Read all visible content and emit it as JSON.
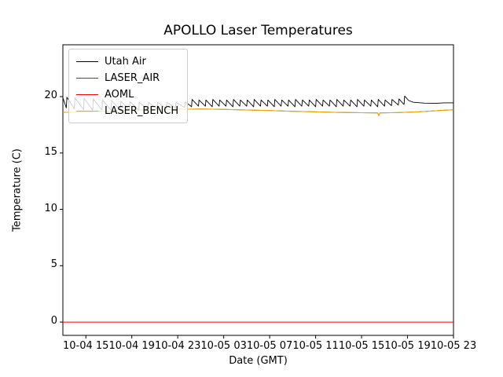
{
  "chart_data": {
    "type": "line",
    "title": "APOLLO Laser Temperatures",
    "xlabel": "Date (GMT)",
    "ylabel": "Temperature (C)",
    "xlim": [
      0,
      34
    ],
    "ylim": [
      -1.18,
      24.6
    ],
    "grid": false,
    "legend_position": "upper left",
    "xticks": {
      "positions": [
        2,
        6,
        10,
        14,
        18,
        22,
        26,
        30,
        34
      ],
      "labels": [
        "10-04 15",
        "10-04 19",
        "10-04 23",
        "10-05 03",
        "10-05 07",
        "10-05 11",
        "10-05 15",
        "10-05 19",
        "10-05 23"
      ]
    },
    "yticks": {
      "positions": [
        0,
        5,
        10,
        15,
        20
      ],
      "labels": [
        "0",
        "5",
        "10",
        "15",
        "20"
      ]
    },
    "series": [
      {
        "name": "Utah Air",
        "color": "#000000",
        "width": 0.9,
        "points": [
          [
            0,
            19.9
          ],
          [
            0.3,
            19.0
          ],
          [
            0.35,
            19.95
          ],
          [
            1.0,
            18.9
          ],
          [
            1.05,
            19.9
          ],
          [
            1.8,
            18.85
          ],
          [
            1.85,
            19.85
          ],
          [
            2.6,
            18.8
          ],
          [
            2.65,
            19.8
          ],
          [
            3.4,
            18.8
          ],
          [
            3.45,
            19.7
          ],
          [
            4.2,
            18.8
          ],
          [
            4.25,
            19.65
          ],
          [
            5.0,
            18.8
          ],
          [
            5.05,
            19.6
          ],
          [
            5.8,
            18.8
          ],
          [
            5.85,
            19.55
          ],
          [
            6.6,
            18.8
          ],
          [
            6.65,
            19.5
          ],
          [
            7.4,
            18.85
          ],
          [
            7.45,
            19.5
          ],
          [
            8.2,
            18.9
          ],
          [
            8.25,
            19.5
          ],
          [
            9.0,
            18.95
          ],
          [
            9.05,
            19.5
          ],
          [
            9.8,
            19.0
          ],
          [
            9.85,
            19.5
          ],
          [
            10.6,
            19.05
          ],
          [
            10.65,
            19.55
          ],
          [
            11.2,
            19.1
          ],
          [
            11.25,
            19.75
          ],
          [
            11.8,
            19.15
          ],
          [
            11.85,
            19.7
          ],
          [
            12.4,
            19.15
          ],
          [
            12.45,
            19.7
          ],
          [
            13.0,
            19.1
          ],
          [
            13.05,
            19.75
          ],
          [
            13.6,
            19.15
          ],
          [
            13.65,
            19.7
          ],
          [
            14.2,
            19.15
          ],
          [
            14.25,
            19.7
          ],
          [
            14.8,
            19.1
          ],
          [
            14.85,
            19.75
          ],
          [
            15.4,
            19.15
          ],
          [
            15.45,
            19.7
          ],
          [
            16.0,
            19.15
          ],
          [
            16.05,
            19.7
          ],
          [
            16.6,
            19.1
          ],
          [
            16.65,
            19.75
          ],
          [
            17.2,
            19.15
          ],
          [
            17.25,
            19.7
          ],
          [
            17.8,
            19.15
          ],
          [
            17.85,
            19.7
          ],
          [
            18.4,
            19.1
          ],
          [
            18.45,
            19.75
          ],
          [
            19.0,
            19.15
          ],
          [
            19.05,
            19.7
          ],
          [
            19.6,
            19.15
          ],
          [
            19.65,
            19.7
          ],
          [
            20.2,
            19.1
          ],
          [
            20.25,
            19.75
          ],
          [
            20.8,
            19.15
          ],
          [
            20.85,
            19.7
          ],
          [
            21.4,
            19.15
          ],
          [
            21.45,
            19.7
          ],
          [
            22.0,
            19.1
          ],
          [
            22.05,
            19.75
          ],
          [
            22.6,
            19.15
          ],
          [
            22.65,
            19.7
          ],
          [
            23.2,
            19.15
          ],
          [
            23.25,
            19.7
          ],
          [
            23.8,
            19.1
          ],
          [
            23.85,
            19.75
          ],
          [
            24.4,
            19.15
          ],
          [
            24.45,
            19.7
          ],
          [
            25.0,
            19.15
          ],
          [
            25.05,
            19.7
          ],
          [
            25.6,
            19.1
          ],
          [
            25.65,
            19.75
          ],
          [
            26.2,
            19.15
          ],
          [
            26.25,
            19.7
          ],
          [
            26.8,
            19.15
          ],
          [
            26.85,
            19.7
          ],
          [
            27.4,
            19.1
          ],
          [
            27.45,
            19.75
          ],
          [
            28.0,
            19.15
          ],
          [
            28.05,
            19.7
          ],
          [
            28.6,
            19.2
          ],
          [
            28.65,
            19.75
          ],
          [
            29.2,
            19.25
          ],
          [
            29.25,
            19.8
          ],
          [
            29.7,
            19.3
          ],
          [
            29.75,
            20.05
          ],
          [
            30.1,
            19.65
          ],
          [
            30.5,
            19.5
          ],
          [
            31.5,
            19.42
          ],
          [
            32.5,
            19.4
          ],
          [
            33.2,
            19.45
          ],
          [
            34,
            19.45
          ]
        ]
      },
      {
        "name": "LASER_AIR",
        "color": "#008000",
        "width": 1,
        "points": [
          [
            0,
            18.6
          ],
          [
            2,
            18.65
          ],
          [
            4,
            18.72
          ],
          [
            6,
            18.78
          ],
          [
            8,
            18.83
          ],
          [
            10,
            18.87
          ],
          [
            12,
            18.9
          ],
          [
            14,
            18.87
          ],
          [
            16,
            18.82
          ],
          [
            18,
            18.77
          ],
          [
            20,
            18.7
          ],
          [
            22,
            18.65
          ],
          [
            24,
            18.6
          ],
          [
            26,
            18.57
          ],
          [
            27.4,
            18.55
          ],
          [
            27.5,
            18.3
          ],
          [
            27.6,
            18.55
          ],
          [
            29,
            18.58
          ],
          [
            31,
            18.65
          ],
          [
            33,
            18.78
          ],
          [
            34,
            18.83
          ]
        ]
      },
      {
        "name": "AOML",
        "color": "#ff0000",
        "width": 1,
        "points": [
          [
            0,
            0
          ],
          [
            34,
            0
          ]
        ]
      },
      {
        "name": "LASER_BENCH",
        "color": "#ffa500",
        "width": 1,
        "points": [
          [
            0,
            18.6
          ],
          [
            2,
            18.65
          ],
          [
            4,
            18.72
          ],
          [
            6,
            18.78
          ],
          [
            8,
            18.83
          ],
          [
            10,
            18.87
          ],
          [
            12,
            18.9
          ],
          [
            14,
            18.87
          ],
          [
            16,
            18.82
          ],
          [
            18,
            18.77
          ],
          [
            20,
            18.7
          ],
          [
            22,
            18.65
          ],
          [
            24,
            18.6
          ],
          [
            26,
            18.57
          ],
          [
            27.4,
            18.55
          ],
          [
            27.5,
            18.3
          ],
          [
            27.6,
            18.55
          ],
          [
            29,
            18.58
          ],
          [
            31,
            18.65
          ],
          [
            33,
            18.78
          ],
          [
            34,
            18.83
          ]
        ]
      }
    ]
  }
}
